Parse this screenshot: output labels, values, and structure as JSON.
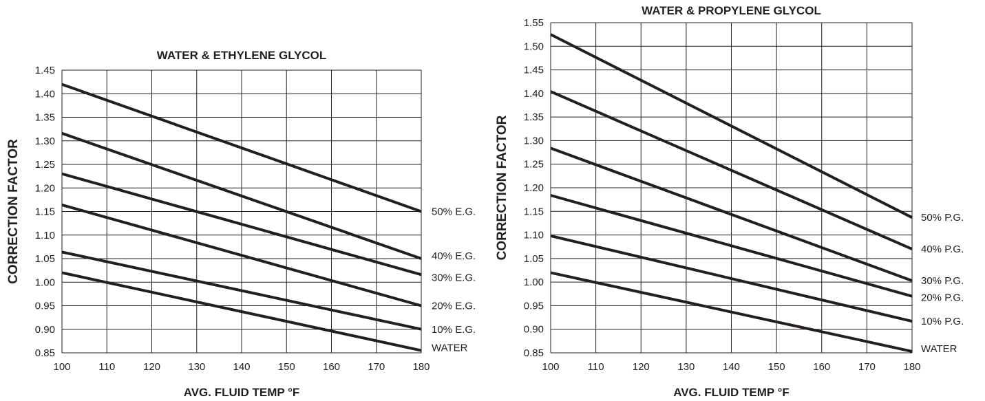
{
  "chart_data": [
    {
      "type": "line",
      "title": "WATER & ETHYLENE GLYCOL",
      "xlabel": "AVG. FLUID TEMP °F",
      "ylabel": "CORRECTION FACTOR",
      "xlim": [
        100,
        180
      ],
      "ylim": [
        0.85,
        1.45
      ],
      "x_ticks": [
        "100",
        "110",
        "120",
        "130",
        "140",
        "150",
        "160",
        "170",
        "180"
      ],
      "y_ticks": [
        "0.85",
        "0.90",
        "0.95",
        "1.00",
        "1.05",
        "1.10",
        "1.15",
        "1.20",
        "1.25",
        "1.30",
        "1.35",
        "1.40",
        "1.45"
      ],
      "grid": true,
      "series": [
        {
          "name": "50% E.G.",
          "x": [
            100,
            180
          ],
          "y": [
            1.42,
            1.15
          ]
        },
        {
          "name": "40% E.G.",
          "x": [
            100,
            180
          ],
          "y": [
            1.316,
            1.05
          ]
        },
        {
          "name": "30% E.G.",
          "x": [
            100,
            180
          ],
          "y": [
            1.23,
            1.016
          ]
        },
        {
          "name": "20% E.G.",
          "x": [
            100,
            180
          ],
          "y": [
            1.164,
            0.95
          ]
        },
        {
          "name": "10% E.G.",
          "x": [
            100,
            180
          ],
          "y": [
            1.064,
            0.9
          ]
        },
        {
          "name": "WATER",
          "x": [
            100,
            180
          ],
          "y": [
            1.02,
            0.855
          ]
        }
      ]
    },
    {
      "type": "line",
      "title": "WATER & PROPYLENE GLYCOL",
      "xlabel": "AVG. FLUID TEMP °F",
      "ylabel": "CORRECTION FACTOR",
      "xlim": [
        100,
        180
      ],
      "ylim": [
        0.85,
        1.55
      ],
      "x_ticks": [
        "100",
        "110",
        "120",
        "130",
        "140",
        "150",
        "160",
        "170",
        "180"
      ],
      "y_ticks": [
        "0.85",
        "0.90",
        "0.95",
        "1.00",
        "1.05",
        "1.10",
        "1.15",
        "1.20",
        "1.25",
        "1.30",
        "1.35",
        "1.40",
        "1.45",
        "1.50",
        "1.55"
      ],
      "grid": true,
      "series": [
        {
          "name": "50% P.G.",
          "x": [
            100,
            180
          ],
          "y": [
            1.525,
            1.137
          ]
        },
        {
          "name": "40% P.G.",
          "x": [
            100,
            180
          ],
          "y": [
            1.404,
            1.07
          ]
        },
        {
          "name": "30% P.G.",
          "x": [
            100,
            180
          ],
          "y": [
            1.284,
            1.003
          ]
        },
        {
          "name": "20% P.G.",
          "x": [
            100,
            180
          ],
          "y": [
            1.184,
            0.97
          ]
        },
        {
          "name": "10% P.G.",
          "x": [
            100,
            180
          ],
          "y": [
            1.098,
            0.917
          ]
        },
        {
          "name": "WATER",
          "x": [
            100,
            180
          ],
          "y": [
            1.02,
            0.853
          ]
        }
      ]
    }
  ]
}
